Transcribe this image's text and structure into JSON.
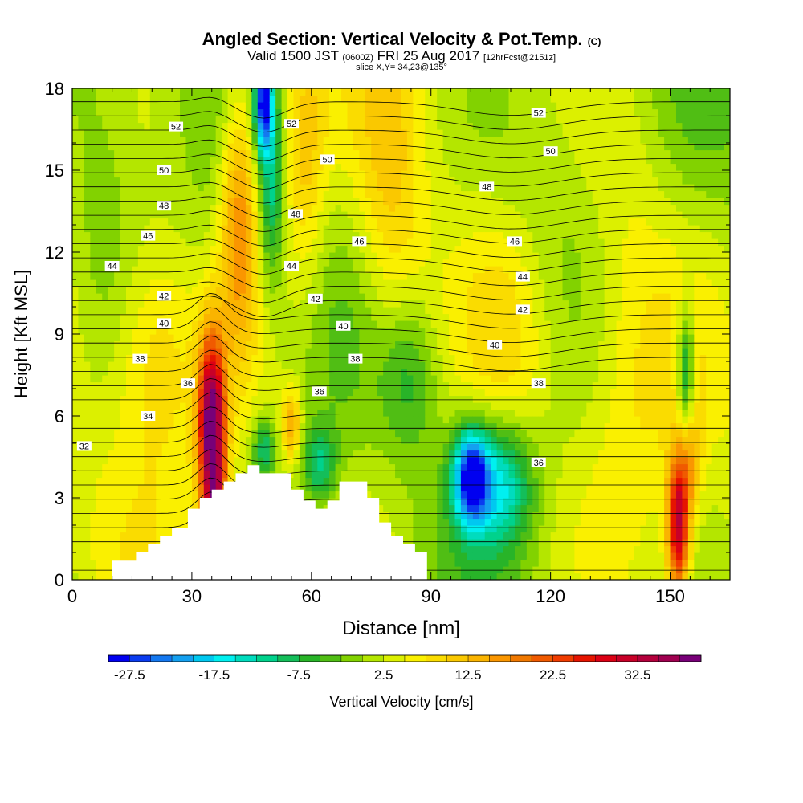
{
  "titles": {
    "main": "Angled Section: Vertical Velocity & Pot.Temp.",
    "copyright": "(C)",
    "valid_prefix": "Valid 1500 JST",
    "valid_utc": "(0600Z)",
    "valid_date": "FRI 25 Aug 2017",
    "forecast": "[12hrFcst@2151z]",
    "slice": "slice X,Y= 34,23@135°"
  },
  "chart_data": {
    "type": "heatmap",
    "xlabel": "Distance [nm]",
    "ylabel": "Height [Kft MSL]",
    "xlim": [
      0,
      165
    ],
    "ylim": [
      0,
      18
    ],
    "xticks": [
      "0",
      "30",
      "60",
      "90",
      "120",
      "150"
    ],
    "yticks": [
      "0",
      "3",
      "6",
      "9",
      "12",
      "15",
      "18"
    ],
    "colorbar": {
      "label": "Vertical Velocity [cm/s]",
      "tick_labels": [
        "-27.5",
        "-17.5",
        "-7.5",
        "2.5",
        "12.5",
        "22.5",
        "32.5"
      ],
      "bins": [
        -30,
        -27.5,
        -25,
        -22.5,
        -20,
        -17.5,
        -15,
        -12.5,
        -10,
        -7.5,
        -5,
        -2.5,
        0,
        2.5,
        5,
        7.5,
        10,
        12.5,
        15,
        17.5,
        20,
        22.5,
        25,
        27.5,
        30,
        32.5,
        35,
        37.5,
        40
      ],
      "colors": [
        "#0000f0",
        "#0a3cf0",
        "#1478f0",
        "#14a0f0",
        "#00c8f0",
        "#00f0f0",
        "#00dcbe",
        "#00d28c",
        "#14be5a",
        "#28b428",
        "#50be14",
        "#82d200",
        "#b4e600",
        "#dcf000",
        "#faf000",
        "#fadc00",
        "#fac800",
        "#fab400",
        "#fa9600",
        "#f07800",
        "#f05a00",
        "#f03c00",
        "#e61400",
        "#dc0014",
        "#c80028",
        "#b4003c",
        "#a00050",
        "#780078"
      ]
    },
    "terrain": {
      "x": [
        0,
        10,
        10,
        16,
        16,
        19,
        19,
        22,
        22,
        25,
        25,
        29,
        29,
        32,
        32,
        35,
        35,
        38,
        38,
        41,
        41,
        44,
        44,
        47,
        47,
        55,
        55,
        58,
        58,
        61,
        61,
        64,
        64,
        67,
        67,
        74,
        74,
        77,
        77,
        80,
        80,
        83,
        83,
        86,
        86,
        89,
        89,
        165
      ],
      "y": [
        0,
        0,
        0.7,
        0.7,
        1.0,
        1.0,
        1.3,
        1.3,
        1.6,
        1.6,
        1.9,
        1.9,
        2.6,
        2.6,
        3.0,
        3.0,
        3.3,
        3.3,
        3.6,
        3.6,
        3.9,
        3.9,
        4.2,
        4.2,
        3.9,
        3.9,
        3.3,
        3.3,
        2.9,
        2.9,
        2.6,
        2.6,
        2.9,
        2.9,
        3.6,
        3.6,
        3.0,
        3.0,
        2.1,
        2.1,
        1.6,
        1.6,
        1.3,
        1.3,
        1.0,
        1.0,
        0,
        0
      ]
    },
    "features": [
      {
        "x": 35,
        "y": 5.6,
        "sx": 2.4,
        "sy": 2.3,
        "v": 38
      },
      {
        "x": 36,
        "y": 2.6,
        "sx": 2.2,
        "sy": 1.2,
        "v": 16
      },
      {
        "x": 42,
        "y": 13.5,
        "sx": 3.5,
        "sy": 3.5,
        "v": 17
      },
      {
        "x": 58,
        "y": 15.5,
        "sx": 4.0,
        "sy": 3.5,
        "v": 10
      },
      {
        "x": 80,
        "y": 13.0,
        "sx": 6.0,
        "sy": 5.0,
        "v": 8
      },
      {
        "x": 48,
        "y": 17.5,
        "sx": 1.6,
        "sy": 1.2,
        "v": -28
      },
      {
        "x": 50,
        "y": 14.5,
        "sx": 2.2,
        "sy": 2.5,
        "v": -12
      },
      {
        "x": 55,
        "y": 5.7,
        "sx": 1.6,
        "sy": 0.9,
        "v": 14
      },
      {
        "x": 48,
        "y": 4.8,
        "sx": 2.0,
        "sy": 0.8,
        "v": -12
      },
      {
        "x": 62,
        "y": 4.2,
        "sx": 3.0,
        "sy": 1.0,
        "v": -12
      },
      {
        "x": 100,
        "y": 3.8,
        "sx": 3.0,
        "sy": 1.2,
        "v": -27
      },
      {
        "x": 107,
        "y": 3.5,
        "sx": 6.0,
        "sy": 1.6,
        "v": -16
      },
      {
        "x": 84,
        "y": 7.5,
        "sx": 5.0,
        "sy": 2.0,
        "v": -8
      },
      {
        "x": 152,
        "y": 2.0,
        "sx": 2.0,
        "sy": 1.8,
        "v": 30
      },
      {
        "x": 154,
        "y": 7.5,
        "sx": 1.5,
        "sy": 1.8,
        "v": -16
      },
      {
        "x": 155,
        "y": 4.5,
        "sx": 2.0,
        "sy": 1.5,
        "v": 10
      },
      {
        "x": 20,
        "y": 8.5,
        "sx": 8.0,
        "sy": 3.0,
        "v": 8
      },
      {
        "x": 110,
        "y": 9.0,
        "sx": 8.0,
        "sy": 3.0,
        "v": 6
      },
      {
        "x": 120,
        "y": 14.0,
        "sx": 12.0,
        "sy": 4.0,
        "v": -5
      },
      {
        "x": 8,
        "y": 14.0,
        "sx": 6.0,
        "sy": 5.0,
        "v": -4
      },
      {
        "x": 140,
        "y": 9.0,
        "sx": 8.0,
        "sy": 6.0,
        "v": 4
      }
    ],
    "contour_labels": [
      {
        "x": 26,
        "y": 16.6,
        "label": "52"
      },
      {
        "x": 55,
        "y": 16.7,
        "label": "52"
      },
      {
        "x": 117,
        "y": 17.1,
        "label": "52"
      },
      {
        "x": 23,
        "y": 15.0,
        "label": "50"
      },
      {
        "x": 64,
        "y": 15.4,
        "label": "50"
      },
      {
        "x": 120,
        "y": 15.7,
        "label": "50"
      },
      {
        "x": 23,
        "y": 13.7,
        "label": "48"
      },
      {
        "x": 56,
        "y": 13.4,
        "label": "48"
      },
      {
        "x": 104,
        "y": 14.4,
        "label": "48"
      },
      {
        "x": 19,
        "y": 12.6,
        "label": "46"
      },
      {
        "x": 72,
        "y": 12.4,
        "label": "46"
      },
      {
        "x": 111,
        "y": 12.4,
        "label": "46"
      },
      {
        "x": 10,
        "y": 11.5,
        "label": "44"
      },
      {
        "x": 55,
        "y": 11.5,
        "label": "44"
      },
      {
        "x": 113,
        "y": 11.1,
        "label": "44"
      },
      {
        "x": 23,
        "y": 10.4,
        "label": "42"
      },
      {
        "x": 61,
        "y": 10.3,
        "label": "42"
      },
      {
        "x": 113,
        "y": 9.9,
        "label": "42"
      },
      {
        "x": 23,
        "y": 9.4,
        "label": "40"
      },
      {
        "x": 68,
        "y": 9.3,
        "label": "40"
      },
      {
        "x": 106,
        "y": 8.6,
        "label": "40"
      },
      {
        "x": 17,
        "y": 8.1,
        "label": "38"
      },
      {
        "x": 71,
        "y": 8.1,
        "label": "38"
      },
      {
        "x": 117,
        "y": 7.2,
        "label": "38"
      },
      {
        "x": 29,
        "y": 7.2,
        "label": "36"
      },
      {
        "x": 62,
        "y": 6.9,
        "label": "36"
      },
      {
        "x": 117,
        "y": 4.3,
        "label": "36"
      },
      {
        "x": 19,
        "y": 6.0,
        "label": "34"
      },
      {
        "x": 3,
        "y": 4.9,
        "label": "32"
      }
    ]
  }
}
